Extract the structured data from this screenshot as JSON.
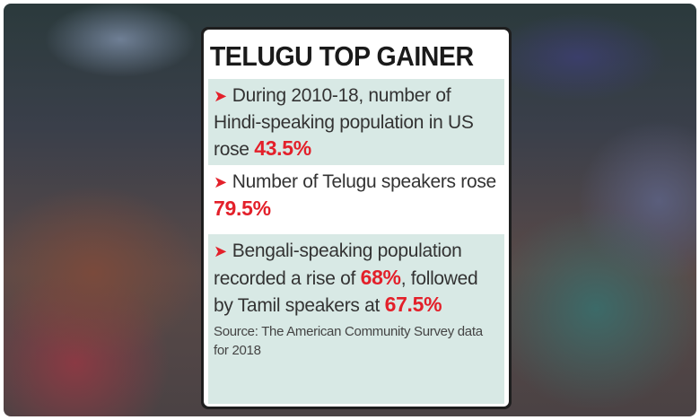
{
  "title": "TELUGU TOP GAINER",
  "colors": {
    "highlight": "#e3202a",
    "panel": "#d8e9e5"
  },
  "bullets": [
    {
      "text": "During 2010-18, number of Hindi-speaking population in US rose",
      "value": "43.5%"
    },
    {
      "text": "Number of Telugu speakers rose",
      "value": "79.5%"
    },
    {
      "text": "Bengali-speaking population recorded a rise of",
      "value": "68%",
      "text2": ", followed by Tamil speakers at",
      "value2": "67.5%"
    }
  ],
  "arrow_icon": "➤",
  "source": "Source: The American Community Survey data for 2018"
}
